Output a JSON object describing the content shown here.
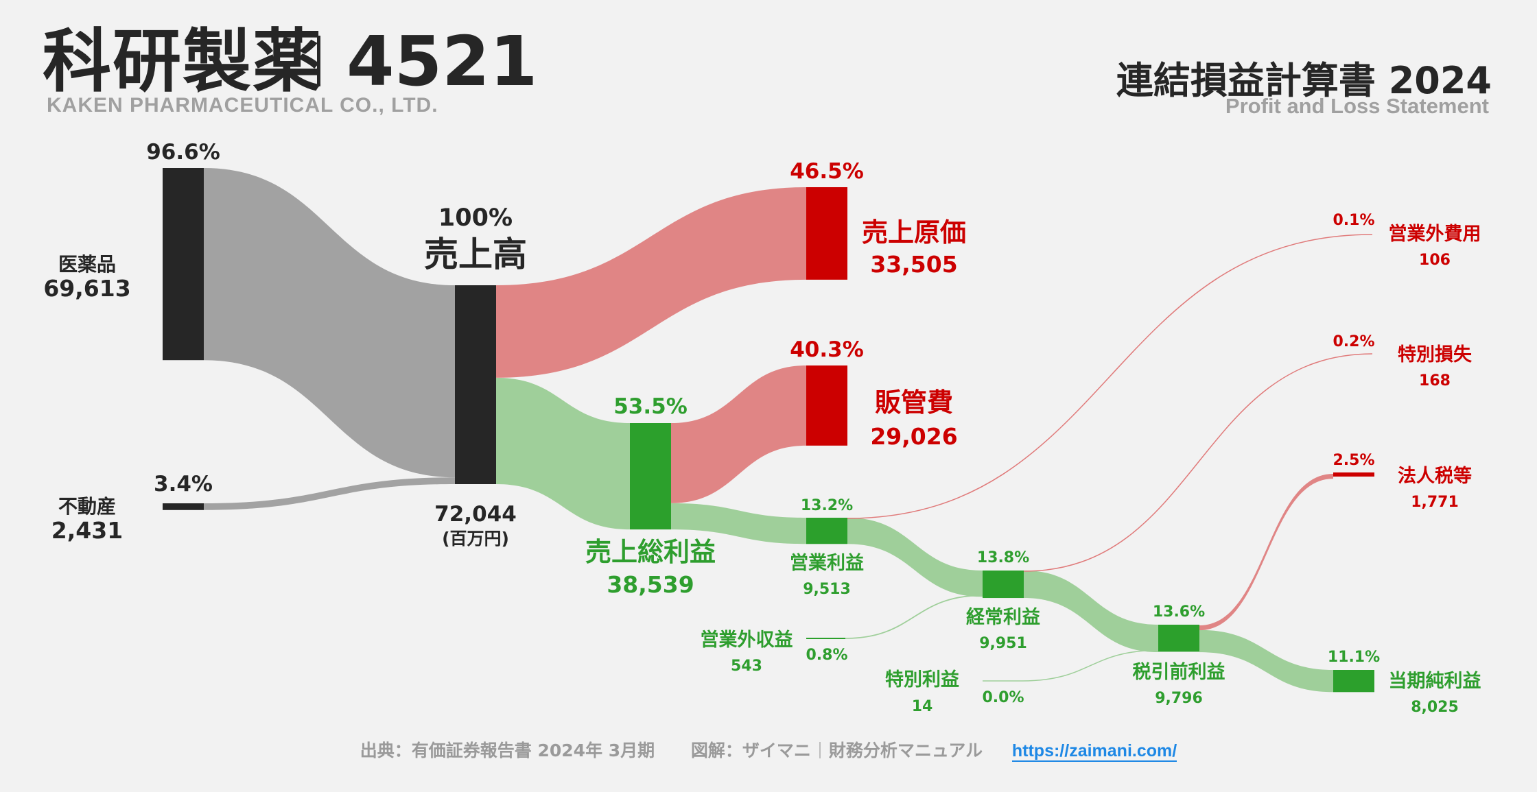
{
  "header": {
    "company_jp": "科研製薬",
    "ticker": "4521",
    "company_en": "KAKEN PHARMACEUTICAL CO., LTD.",
    "statement_jp": "連結損益計算書 2024",
    "statement_en": "Profit and Loss Statement"
  },
  "footer": {
    "source": "出典：有価証券報告書 2024年 3月期",
    "credit_prefix": "図解：ザイマニ",
    "credit_suffix": "財務分析マニュアル",
    "url": "https://zaimani.com/"
  },
  "colors": {
    "dark": "#262626",
    "gray_flow": "#a2a2a2",
    "red_node": "#cc0000",
    "red_flow": "#e08585",
    "green_node": "#2ca02c",
    "green_flow": "#9fcf9a",
    "green_text": "#2e9e2e",
    "red_text": "#cc0000"
  },
  "chart_data": {
    "type": "sankey",
    "unit": "(百万円)",
    "nodes": [
      {
        "id": "iyakuhin",
        "label": "医薬品",
        "value": "69,613",
        "pct": "96.6%"
      },
      {
        "id": "fudousan",
        "label": "不動産",
        "value": "2,431",
        "pct": "3.4%"
      },
      {
        "id": "uriage",
        "label": "売上高",
        "value": "72,044",
        "pct": "100%"
      },
      {
        "id": "genka",
        "label": "売上原価",
        "value": "33,505",
        "pct": "46.5%"
      },
      {
        "id": "hankan",
        "label": "販管費",
        "value": "29,026",
        "pct": "40.3%"
      },
      {
        "id": "sourieki",
        "label": "売上総利益",
        "value": "38,539",
        "pct": "53.5%"
      },
      {
        "id": "eigyo",
        "label": "営業利益",
        "value": "9,513",
        "pct": "13.2%"
      },
      {
        "id": "eigyogai_shueki",
        "label": "営業外収益",
        "value": "543",
        "pct": "0.8%"
      },
      {
        "id": "keijo",
        "label": "経常利益",
        "value": "9,951",
        "pct": "13.8%"
      },
      {
        "id": "eigyogai_hiyo",
        "label": "営業外費用",
        "value": "106",
        "pct": "0.1%"
      },
      {
        "id": "tokubetsu_rieki",
        "label": "特別利益",
        "value": "14",
        "pct": "0.0%"
      },
      {
        "id": "tokubetsu_sonshitsu",
        "label": "特別損失",
        "value": "168",
        "pct": "0.2%"
      },
      {
        "id": "zeibikimae",
        "label": "税引前利益",
        "value": "9,796",
        "pct": "13.6%"
      },
      {
        "id": "hojinzei",
        "label": "法人税等",
        "value": "1,771",
        "pct": "2.5%"
      },
      {
        "id": "junrieki",
        "label": "当期純利益",
        "value": "8,025",
        "pct": "11.1%"
      }
    ],
    "links": [
      {
        "source": "iyakuhin",
        "target": "uriage",
        "value": 69613
      },
      {
        "source": "fudousan",
        "target": "uriage",
        "value": 2431
      },
      {
        "source": "uriage",
        "target": "genka",
        "value": 33505
      },
      {
        "source": "uriage",
        "target": "sourieki",
        "value": 38539
      },
      {
        "source": "sourieki",
        "target": "hankan",
        "value": 29026
      },
      {
        "source": "sourieki",
        "target": "eigyo",
        "value": 9513
      },
      {
        "source": "eigyo",
        "target": "keijo",
        "value": 9513
      },
      {
        "source": "eigyogai_shueki",
        "target": "keijo",
        "value": 543
      },
      {
        "source": "keijo",
        "target": "eigyogai_hiyo",
        "value": 106
      },
      {
        "source": "keijo",
        "target": "zeibikimae",
        "value": 9951
      },
      {
        "source": "tokubetsu_rieki",
        "target": "zeibikimae",
        "value": 14
      },
      {
        "source": "zeibikimae",
        "target": "tokubetsu_sonshitsu",
        "value": 168
      },
      {
        "source": "zeibikimae",
        "target": "hojinzei",
        "value": 1771
      },
      {
        "source": "zeibikimae",
        "target": "junrieki",
        "value": 8025
      }
    ]
  }
}
